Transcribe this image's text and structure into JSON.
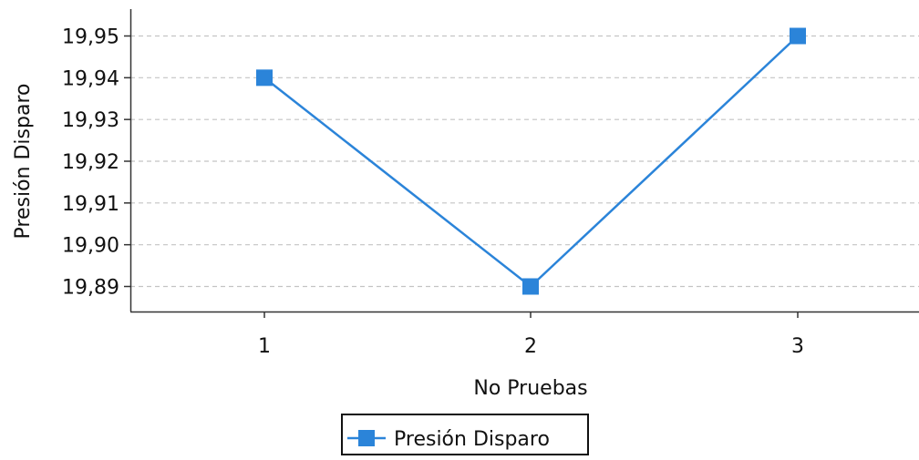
{
  "chart_data": {
    "type": "line",
    "title": "",
    "xlabel": "No Pruebas",
    "ylabel": "Presión Disparo",
    "categories": [
      "1",
      "2",
      "3"
    ],
    "x": [
      1,
      2,
      3
    ],
    "ylim": [
      19.885,
      19.955
    ],
    "yticks": [
      19.89,
      19.9,
      19.91,
      19.92,
      19.93,
      19.94,
      19.95
    ],
    "ytick_labels": [
      "19,89",
      "19,90",
      "19,91",
      "19,92",
      "19,93",
      "19,94",
      "19,95"
    ],
    "grid": true,
    "legend_position": "bottom-center",
    "series": [
      {
        "name": "Presión Disparo",
        "values": [
          19.94,
          19.89,
          19.95
        ],
        "color": "#2b84d9",
        "marker": "square"
      }
    ]
  }
}
